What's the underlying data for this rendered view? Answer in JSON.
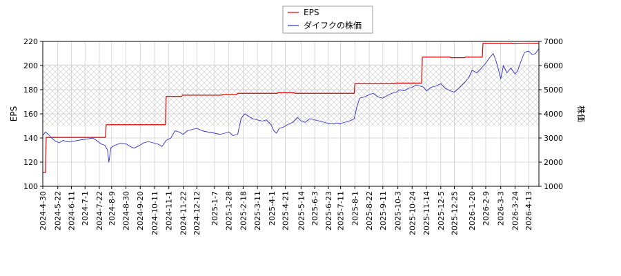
{
  "chart_data": {
    "type": "line",
    "title": "",
    "xlabel": "",
    "ylabel_left": "EPS",
    "ylabel_right": "株価",
    "ylim_left": [
      100,
      220
    ],
    "ylim_right": [
      1000,
      7000
    ],
    "yticks_left": [
      100,
      120,
      140,
      160,
      180,
      200,
      220
    ],
    "yticks_right": [
      1000,
      2000,
      3000,
      4000,
      5000,
      6000,
      7000
    ],
    "x_ticks": [
      "2024-4-30",
      "2024-5-22",
      "2024-6-11",
      "2024-7-1",
      "2024-7-22",
      "2024-8-9",
      "2024-8-30",
      "2024-9-20",
      "2024-10-11",
      "2024-11-1",
      "2024-11-22",
      "2024-12-12",
      "2025-1-7",
      "2025-1-28",
      "2025-2-18",
      "2025-3-11",
      "2025-4-1",
      "2025-4-21",
      "2025-5-14",
      "2025-6-3",
      "2025-6-23",
      "2025-7-11",
      "2025-8-1",
      "2025-8-22",
      "2025-9-11",
      "2025-10-3",
      "2025-10-24",
      "2025-11-14",
      "2025-12-5",
      "2025-12-25",
      "2026-1-20",
      "2026-2-9",
      "2026-3-3",
      "2026-3-24",
      "2026-4-13"
    ],
    "x_range": [
      "2024-04-30",
      "2026-04-28"
    ],
    "grid": true,
    "legend_position": "top-center",
    "shaded_band_right_axis": [
      3500,
      6050
    ],
    "series": [
      {
        "name": "EPS",
        "axis": "left",
        "color": "#dd0000",
        "points": [
          [
            "2024-04-30",
            111.5
          ],
          [
            "2024-05-04",
            111.5
          ],
          [
            "2024-05-05",
            140.5
          ],
          [
            "2024-07-31",
            140.5
          ],
          [
            "2024-08-01",
            151.0
          ],
          [
            "2024-10-27",
            151.0
          ],
          [
            "2024-10-28",
            174.5
          ],
          [
            "2024-11-20",
            174.5
          ],
          [
            "2024-11-21",
            175.5
          ],
          [
            "2025-01-18",
            175.5
          ],
          [
            "2025-01-19",
            176.0
          ],
          [
            "2025-02-09",
            176.0
          ],
          [
            "2025-02-10",
            177.0
          ],
          [
            "2025-04-09",
            177.0
          ],
          [
            "2025-04-10",
            177.5
          ],
          [
            "2025-05-04",
            177.5
          ],
          [
            "2025-05-05",
            177.0
          ],
          [
            "2025-07-31",
            177.0
          ],
          [
            "2025-08-01",
            185.0
          ],
          [
            "2025-09-28",
            185.0
          ],
          [
            "2025-09-29",
            185.5
          ],
          [
            "2025-11-07",
            185.5
          ],
          [
            "2025-11-08",
            207.0
          ],
          [
            "2025-12-19",
            207.0
          ],
          [
            "2025-12-20",
            206.5
          ],
          [
            "2026-01-09",
            206.5
          ],
          [
            "2026-01-10",
            207.0
          ],
          [
            "2026-02-04",
            207.0
          ],
          [
            "2026-02-05",
            218.5
          ],
          [
            "2026-03-20",
            218.5
          ],
          [
            "2026-03-21",
            218.0
          ],
          [
            "2026-04-28",
            218.5
          ]
        ]
      },
      {
        "name": "ダイフクの株価",
        "axis": "right",
        "color": "#2a2acc",
        "points": [
          [
            "2024-04-30",
            3100
          ],
          [
            "2024-05-04",
            3250
          ],
          [
            "2024-05-08",
            3150
          ],
          [
            "2024-05-13",
            3000
          ],
          [
            "2024-05-18",
            2880
          ],
          [
            "2024-05-24",
            2800
          ],
          [
            "2024-05-30",
            2900
          ],
          [
            "2024-06-05",
            2840
          ],
          [
            "2024-06-11",
            2860
          ],
          [
            "2024-06-17",
            2880
          ],
          [
            "2024-06-24",
            2920
          ],
          [
            "2024-07-01",
            2950
          ],
          [
            "2024-07-07",
            2970
          ],
          [
            "2024-07-12",
            3000
          ],
          [
            "2024-07-18",
            2900
          ],
          [
            "2024-07-24",
            2760
          ],
          [
            "2024-07-30",
            2700
          ],
          [
            "2024-08-03",
            2500
          ],
          [
            "2024-08-05",
            2000
          ],
          [
            "2024-08-08",
            2600
          ],
          [
            "2024-08-14",
            2700
          ],
          [
            "2024-08-22",
            2780
          ],
          [
            "2024-08-30",
            2760
          ],
          [
            "2024-09-05",
            2650
          ],
          [
            "2024-09-11",
            2580
          ],
          [
            "2024-09-18",
            2680
          ],
          [
            "2024-09-25",
            2800
          ],
          [
            "2024-10-02",
            2850
          ],
          [
            "2024-10-09",
            2800
          ],
          [
            "2024-10-16",
            2750
          ],
          [
            "2024-10-22",
            2650
          ],
          [
            "2024-10-28",
            2900
          ],
          [
            "2024-11-04",
            3000
          ],
          [
            "2024-11-10",
            3300
          ],
          [
            "2024-11-16",
            3250
          ],
          [
            "2024-11-22",
            3150
          ],
          [
            "2024-11-28",
            3300
          ],
          [
            "2024-12-05",
            3350
          ],
          [
            "2024-12-12",
            3400
          ],
          [
            "2024-12-20",
            3300
          ],
          [
            "2024-12-28",
            3250
          ],
          [
            "2025-01-07",
            3200
          ],
          [
            "2025-01-15",
            3150
          ],
          [
            "2025-01-22",
            3200
          ],
          [
            "2025-01-28",
            3250
          ],
          [
            "2025-02-03",
            3100
          ],
          [
            "2025-02-10",
            3150
          ],
          [
            "2025-02-15",
            3800
          ],
          [
            "2025-02-20",
            4000
          ],
          [
            "2025-02-26",
            3900
          ],
          [
            "2025-03-04",
            3800
          ],
          [
            "2025-03-11",
            3750
          ],
          [
            "2025-03-18",
            3700
          ],
          [
            "2025-03-24",
            3750
          ],
          [
            "2025-03-31",
            3550
          ],
          [
            "2025-04-04",
            3300
          ],
          [
            "2025-04-08",
            3200
          ],
          [
            "2025-04-12",
            3400
          ],
          [
            "2025-04-18",
            3450
          ],
          [
            "2025-04-24",
            3550
          ],
          [
            "2025-05-02",
            3650
          ],
          [
            "2025-05-09",
            3850
          ],
          [
            "2025-05-14",
            3700
          ],
          [
            "2025-05-20",
            3650
          ],
          [
            "2025-05-27",
            3800
          ],
          [
            "2025-06-03",
            3750
          ],
          [
            "2025-06-10",
            3700
          ],
          [
            "2025-06-17",
            3650
          ],
          [
            "2025-06-23",
            3600
          ],
          [
            "2025-06-30",
            3580
          ],
          [
            "2025-07-07",
            3620
          ],
          [
            "2025-07-11",
            3600
          ],
          [
            "2025-07-17",
            3650
          ],
          [
            "2025-07-24",
            3700
          ],
          [
            "2025-07-31",
            3800
          ],
          [
            "2025-08-04",
            4300
          ],
          [
            "2025-08-08",
            4650
          ],
          [
            "2025-08-15",
            4700
          ],
          [
            "2025-08-22",
            4800
          ],
          [
            "2025-08-28",
            4850
          ],
          [
            "2025-09-04",
            4700
          ],
          [
            "2025-09-11",
            4650
          ],
          [
            "2025-09-17",
            4750
          ],
          [
            "2025-09-24",
            4850
          ],
          [
            "2025-10-01",
            4900
          ],
          [
            "2025-10-06",
            5000
          ],
          [
            "2025-10-12",
            4950
          ],
          [
            "2025-10-18",
            5050
          ],
          [
            "2025-10-24",
            5100
          ],
          [
            "2025-10-30",
            5200
          ],
          [
            "2025-11-05",
            5150
          ],
          [
            "2025-11-10",
            5100
          ],
          [
            "2025-11-14",
            4950
          ],
          [
            "2025-11-21",
            5100
          ],
          [
            "2025-11-28",
            5150
          ],
          [
            "2025-12-05",
            5250
          ],
          [
            "2025-12-12",
            5050
          ],
          [
            "2025-12-19",
            4950
          ],
          [
            "2025-12-25",
            4900
          ],
          [
            "2026-01-02",
            5100
          ],
          [
            "2026-01-09",
            5300
          ],
          [
            "2026-01-15",
            5500
          ],
          [
            "2026-01-20",
            5800
          ],
          [
            "2026-01-27",
            5700
          ],
          [
            "2026-02-03",
            5900
          ],
          [
            "2026-02-09",
            6100
          ],
          [
            "2026-02-14",
            6300
          ],
          [
            "2026-02-20",
            6500
          ],
          [
            "2026-02-24",
            6200
          ],
          [
            "2026-02-28",
            5800
          ],
          [
            "2026-03-03",
            5450
          ],
          [
            "2026-03-07",
            6000
          ],
          [
            "2026-03-12",
            5700
          ],
          [
            "2026-03-18",
            5900
          ],
          [
            "2026-03-24",
            5650
          ],
          [
            "2026-03-28",
            5800
          ],
          [
            "2026-04-02",
            6200
          ],
          [
            "2026-04-07",
            6550
          ],
          [
            "2026-04-13",
            6600
          ],
          [
            "2026-04-18",
            6450
          ],
          [
            "2026-04-23",
            6500
          ],
          [
            "2026-04-28",
            6700
          ]
        ]
      }
    ]
  }
}
